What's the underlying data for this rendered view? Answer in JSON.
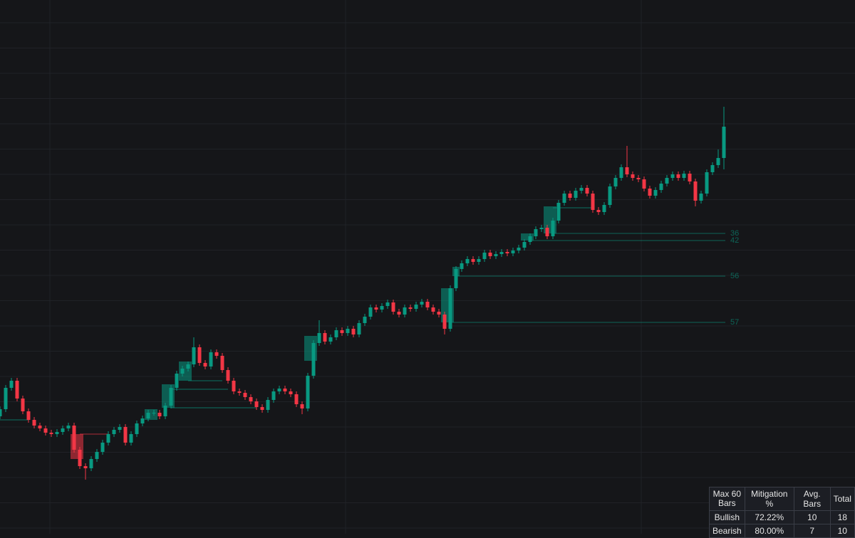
{
  "chart_data": {
    "type": "candlestick",
    "ylim": [
      0,
      750
    ],
    "up_color": "#089981",
    "down_color": "#f23645",
    "open": [
      165,
      175,
      205,
      215,
      190,
      172,
      160,
      152,
      148,
      142,
      140,
      143,
      148,
      152,
      118,
      95,
      92,
      105,
      115,
      128,
      140,
      146,
      150,
      128,
      140,
      155,
      162,
      170,
      170,
      165,
      180,
      205,
      225,
      232,
      238,
      262,
      240,
      235,
      255,
      250,
      230,
      215,
      200,
      198,
      192,
      186,
      178,
      174,
      188,
      200,
      204,
      200,
      196,
      182,
      176,
      222,
      268,
      282,
      270,
      276,
      286,
      282,
      288,
      280,
      296,
      305,
      318,
      315,
      320,
      325,
      312,
      308,
      318,
      316,
      322,
      326,
      318,
      312,
      308,
      288,
      345,
      372,
      380,
      386,
      382,
      386,
      395,
      390,
      393,
      396,
      394,
      398,
      402,
      410,
      418,
      428,
      430,
      418,
      440,
      465,
      478,
      472,
      482,
      486,
      478,
      455,
      452,
      462,
      488,
      500,
      515,
      505,
      500,
      498,
      485,
      475,
      483,
      492,
      500,
      505,
      500,
      506,
      495,
      468,
      478,
      508,
      518,
      528
    ],
    "high": [
      179,
      209,
      219,
      219,
      194,
      176,
      164,
      156,
      152,
      146,
      147,
      152,
      156,
      156,
      122,
      99,
      109,
      119,
      132,
      144,
      150,
      154,
      154,
      144,
      159,
      166,
      174,
      174,
      174,
      184,
      209,
      229,
      236,
      242,
      276,
      266,
      244,
      259,
      259,
      254,
      234,
      219,
      204,
      202,
      196,
      190,
      182,
      192,
      204,
      208,
      208,
      204,
      200,
      186,
      226,
      272,
      300,
      286,
      280,
      290,
      290,
      292,
      292,
      300,
      309,
      322,
      322,
      324,
      329,
      329,
      316,
      322,
      322,
      326,
      330,
      330,
      322,
      316,
      312,
      349,
      376,
      384,
      390,
      390,
      390,
      399,
      399,
      397,
      400,
      400,
      402,
      406,
      414,
      422,
      432,
      434,
      434,
      444,
      469,
      482,
      482,
      486,
      490,
      490,
      482,
      459,
      466,
      492,
      504,
      519,
      545,
      509,
      504,
      502,
      489,
      487,
      496,
      504,
      509,
      509,
      510,
      510,
      499,
      482,
      512,
      522,
      540,
      600
    ],
    "low": [
      161,
      171,
      201,
      186,
      168,
      156,
      148,
      144,
      138,
      136,
      136,
      139,
      144,
      114,
      91,
      76,
      88,
      101,
      111,
      124,
      136,
      142,
      124,
      124,
      136,
      151,
      158,
      166,
      161,
      161,
      176,
      201,
      221,
      228,
      234,
      236,
      231,
      231,
      246,
      226,
      211,
      196,
      194,
      188,
      182,
      174,
      170,
      170,
      184,
      196,
      196,
      192,
      178,
      168,
      172,
      218,
      264,
      266,
      266,
      272,
      278,
      278,
      276,
      276,
      292,
      301,
      311,
      311,
      316,
      308,
      304,
      304,
      312,
      312,
      318,
      314,
      308,
      304,
      280,
      284,
      341,
      368,
      376,
      378,
      378,
      382,
      386,
      386,
      389,
      390,
      390,
      394,
      398,
      406,
      414,
      424,
      414,
      414,
      436,
      461,
      468,
      468,
      478,
      474,
      451,
      448,
      448,
      458,
      484,
      496,
      501,
      496,
      494,
      481,
      471,
      471,
      479,
      488,
      496,
      496,
      496,
      491,
      460,
      464,
      474,
      504,
      514,
      512
    ],
    "close": [
      175,
      205,
      215,
      190,
      172,
      160,
      152,
      148,
      142,
      140,
      143,
      148,
      152,
      118,
      95,
      92,
      105,
      115,
      128,
      140,
      146,
      150,
      128,
      140,
      155,
      162,
      170,
      170,
      165,
      180,
      205,
      225,
      232,
      238,
      262,
      240,
      235,
      255,
      250,
      230,
      215,
      200,
      198,
      192,
      186,
      178,
      174,
      188,
      200,
      204,
      200,
      196,
      182,
      176,
      222,
      268,
      282,
      270,
      276,
      286,
      282,
      288,
      280,
      296,
      305,
      318,
      315,
      320,
      325,
      312,
      308,
      318,
      316,
      322,
      326,
      318,
      312,
      308,
      288,
      345,
      372,
      380,
      386,
      382,
      386,
      395,
      390,
      393,
      396,
      394,
      398,
      402,
      410,
      418,
      428,
      430,
      418,
      440,
      465,
      478,
      472,
      482,
      486,
      478,
      455,
      452,
      462,
      488,
      500,
      515,
      505,
      500,
      498,
      485,
      475,
      483,
      492,
      500,
      505,
      500,
      506,
      495,
      468,
      478,
      508,
      518,
      528,
      572
    ],
    "zones": [
      {
        "kind": "bear",
        "top": 140,
        "bottom": 105,
        "start": 13,
        "end": 14
      },
      {
        "kind": "bull",
        "top": 175,
        "bottom": 160,
        "start": 26,
        "end": 27
      },
      {
        "kind": "bull",
        "top": 210,
        "bottom": 177,
        "start": 29,
        "end": 30
      },
      {
        "kind": "bull",
        "top": 242,
        "bottom": 215,
        "start": 32,
        "end": 33
      },
      {
        "kind": "bull",
        "top": 278,
        "bottom": 243,
        "start": 54,
        "end": 55
      },
      {
        "kind": "bull",
        "top": 345,
        "bottom": 297,
        "start": 78,
        "end": 79
      },
      {
        "kind": "bull",
        "top": 375,
        "bottom": 362,
        "start": 80,
        "end": 80
      },
      {
        "kind": "bull",
        "top": 422,
        "bottom": 412,
        "start": 92,
        "end": 93
      },
      {
        "kind": "bull",
        "top": 460,
        "bottom": 422,
        "start": 96,
        "end": 97
      }
    ],
    "lines": [
      {
        "kind": "bear",
        "value": 140,
        "start": 14,
        "end": 19
      },
      {
        "kind": "bull",
        "value": 160,
        "start": 0,
        "end": 5
      },
      {
        "kind": "bull",
        "value": 177,
        "start": 30,
        "end": 45
      },
      {
        "kind": "bull",
        "value": 203,
        "start": 30,
        "end": 40
      },
      {
        "kind": "bull",
        "value": 215,
        "start": 33,
        "end": 39
      },
      {
        "kind": "bull",
        "value": 458,
        "start": 97,
        "end": 104
      }
    ],
    "levels": [
      {
        "value": 422,
        "start": 97,
        "end": 127,
        "bars": 36
      },
      {
        "value": 412,
        "start": 93,
        "end": 127,
        "bars": 42
      },
      {
        "value": 362,
        "start": 80,
        "end": 127,
        "bars": 56
      },
      {
        "value": 297,
        "start": 79,
        "end": 127,
        "bars": 57
      }
    ]
  },
  "table": {
    "header": [
      "Max 60 Bars",
      "Mitigation %",
      "Avg. Bars",
      "Total"
    ],
    "rows": [
      [
        "Bullish",
        "72.22%",
        "10",
        "18"
      ],
      [
        "Bearish",
        "80.00%",
        "7",
        "10"
      ]
    ]
  }
}
